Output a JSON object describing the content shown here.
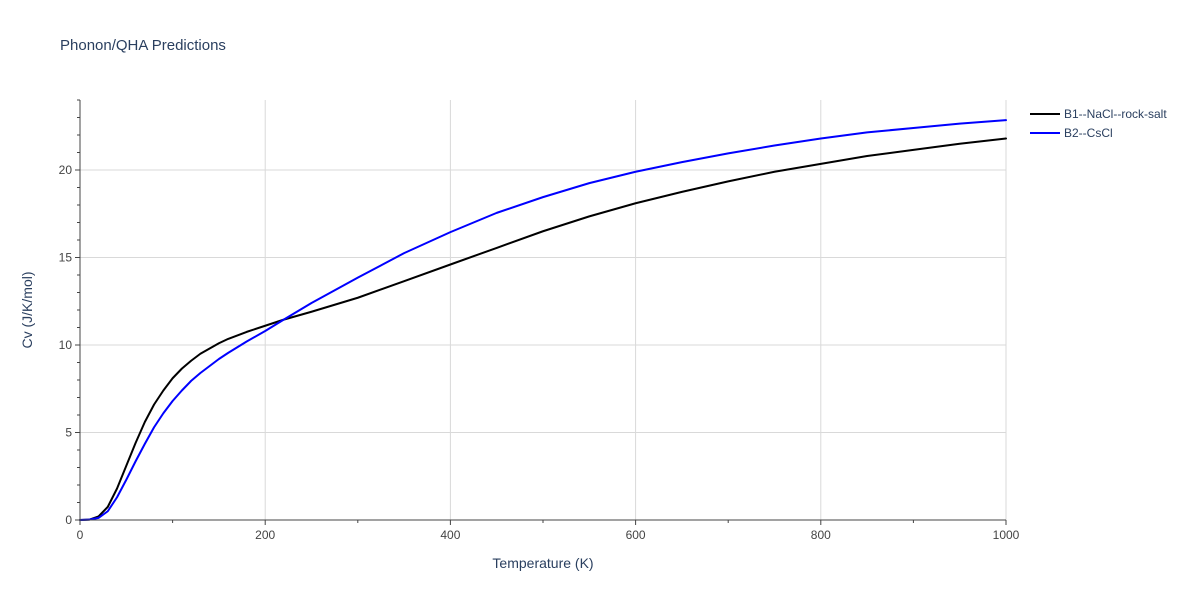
{
  "chart_data": {
    "type": "line",
    "title": "Phonon/QHA Predictions",
    "xlabel": "Temperature (K)",
    "ylabel": "Cv (J/K/mol)",
    "xlim": [
      0,
      1000
    ],
    "ylim": [
      0,
      24
    ],
    "xticks": [
      0,
      200,
      400,
      600,
      800,
      1000
    ],
    "yticks": [
      0,
      5,
      10,
      15,
      20
    ],
    "grid": true,
    "legend_position": "top-right",
    "series": [
      {
        "name": "B1--NaCl--rock-salt",
        "color": "#000000",
        "x": [
          0,
          10,
          20,
          30,
          40,
          50,
          60,
          70,
          80,
          90,
          100,
          110,
          120,
          130,
          140,
          150,
          160,
          180,
          200,
          220,
          250,
          300,
          350,
          400,
          450,
          500,
          550,
          600,
          650,
          700,
          750,
          800,
          850,
          900,
          950,
          1000
        ],
        "y": [
          0,
          0.02,
          0.2,
          0.75,
          1.8,
          3.1,
          4.4,
          5.6,
          6.6,
          7.4,
          8.1,
          8.65,
          9.1,
          9.5,
          9.8,
          10.1,
          10.35,
          10.75,
          11.1,
          11.45,
          11.9,
          12.7,
          13.65,
          14.6,
          15.55,
          16.5,
          17.35,
          18.1,
          18.75,
          19.35,
          19.9,
          20.35,
          20.8,
          21.15,
          21.5,
          21.8
        ]
      },
      {
        "name": "B2--CsCl",
        "color": "#0000ff",
        "x": [
          0,
          10,
          20,
          30,
          40,
          50,
          60,
          70,
          80,
          90,
          100,
          110,
          120,
          130,
          140,
          150,
          160,
          180,
          200,
          220,
          250,
          300,
          350,
          400,
          450,
          500,
          550,
          600,
          650,
          700,
          750,
          800,
          850,
          900,
          950,
          1000
        ],
        "y": [
          0,
          0.02,
          0.12,
          0.5,
          1.3,
          2.3,
          3.35,
          4.35,
          5.3,
          6.1,
          6.8,
          7.4,
          7.95,
          8.4,
          8.8,
          9.2,
          9.55,
          10.2,
          10.8,
          11.45,
          12.4,
          13.85,
          15.25,
          16.45,
          17.55,
          18.45,
          19.25,
          19.9,
          20.45,
          20.95,
          21.4,
          21.8,
          22.15,
          22.4,
          22.65,
          22.85
        ]
      }
    ]
  }
}
